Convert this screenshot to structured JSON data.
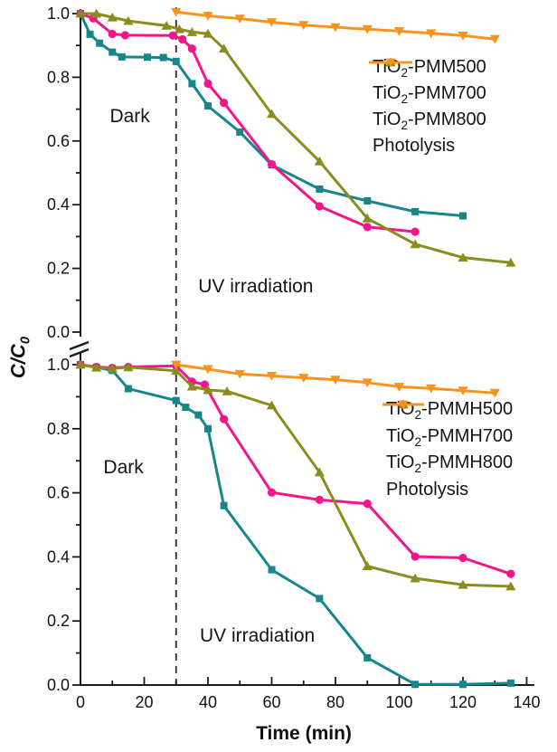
{
  "figure": {
    "x_axis_title": "Time (min)",
    "y_axis_title": {
      "main": "C/C",
      "sub": "0"
    },
    "x_tick_labels": [
      "0",
      "20",
      "40",
      "60",
      "80",
      "100",
      "120",
      "140"
    ]
  },
  "chart_data": {
    "type": "line",
    "xlabel": "Time (min)",
    "ylabel": "C/C0",
    "xlim": [
      0,
      142
    ],
    "legend_position": "right",
    "grid": false,
    "charts": [
      {
        "position": "top",
        "ylim": [
          0.0,
          1.0
        ],
        "y_tick_labels": [
          "1.0",
          "0.8",
          "0.6",
          "0.4",
          "0.2",
          "0.0"
        ],
        "dashed_line_at_min": 30,
        "annotations": [
          {
            "text": "Dark",
            "t": 15.5,
            "v": 0.675
          },
          {
            "text": "UV irradiation",
            "t": 55,
            "v": 0.142
          }
        ],
        "series": [
          {
            "label": {
              "pre": "TiO",
              "sub": "2",
              "post": "-PMM500"
            },
            "color": "#16868B",
            "marker": "square",
            "points": [
              [
                0,
                1.0
              ],
              [
                3,
                0.935
              ],
              [
                6,
                0.907
              ],
              [
                10,
                0.879
              ],
              [
                13,
                0.864
              ],
              [
                21,
                0.863
              ],
              [
                26,
                0.862
              ],
              [
                30,
                0.85
              ],
              [
                35,
                0.78
              ],
              [
                40,
                0.71
              ],
              [
                50,
                0.628
              ],
              [
                60,
                0.525
              ],
              [
                75,
                0.449
              ],
              [
                90,
                0.412
              ],
              [
                105,
                0.378
              ],
              [
                120,
                0.365
              ]
            ]
          },
          {
            "label": {
              "pre": "TiO",
              "sub": "2",
              "post": "-PMM700"
            },
            "color": "#F31589",
            "marker": "circle",
            "points": [
              [
                0,
                1.0
              ],
              [
                4,
                0.985
              ],
              [
                10,
                0.936
              ],
              [
                14,
                0.932
              ],
              [
                29,
                0.931
              ],
              [
                32,
                0.919
              ],
              [
                35,
                0.89
              ],
              [
                40,
                0.78
              ],
              [
                45,
                0.72
              ],
              [
                60,
                0.527
              ],
              [
                75,
                0.395
              ],
              [
                90,
                0.33
              ],
              [
                105,
                0.315
              ]
            ]
          },
          {
            "label": {
              "pre": "TiO",
              "sub": "2",
              "post": "-PMM800"
            },
            "color": "#8A8C1E",
            "marker": "triangle-up",
            "points": [
              [
                0,
                1.0
              ],
              [
                5,
                1.0
              ],
              [
                10,
                0.988
              ],
              [
                15,
                0.977
              ],
              [
                27,
                0.962
              ],
              [
                31,
                0.951
              ],
              [
                35,
                0.942
              ],
              [
                40,
                0.937
              ],
              [
                45,
                0.89
              ],
              [
                60,
                0.685
              ],
              [
                75,
                0.536
              ],
              [
                90,
                0.357
              ],
              [
                105,
                0.276
              ],
              [
                120,
                0.234
              ],
              [
                135,
                0.218
              ]
            ]
          },
          {
            "label": {
              "pre": "",
              "sub": "",
              "post": "Photolysis"
            },
            "color": "#FA921E",
            "marker": "triangle-down",
            "points": [
              [
                30,
                1.005
              ],
              [
                40,
                0.993
              ],
              [
                50,
                0.984
              ],
              [
                60,
                0.973
              ],
              [
                70,
                0.964
              ],
              [
                80,
                0.957
              ],
              [
                90,
                0.951
              ],
              [
                100,
                0.945
              ],
              [
                110,
                0.938
              ],
              [
                120,
                0.931
              ],
              [
                130,
                0.92
              ]
            ]
          }
        ]
      },
      {
        "position": "bottom",
        "ylim": [
          0.0,
          1.0
        ],
        "y_tick_labels": [
          "1.0",
          "0.8",
          "0.6",
          "0.4",
          "0.2",
          "0.0"
        ],
        "dashed_line_at_min": 30,
        "annotations": [
          {
            "text": "Dark",
            "t": 13.5,
            "v": 0.678
          },
          {
            "text": "UV irradiation",
            "t": 55.5,
            "v": 0.152
          }
        ],
        "series": [
          {
            "label": {
              "pre": "TiO",
              "sub": "2",
              "post": "-PMMH500"
            },
            "color": "#16868B",
            "marker": "square",
            "points": [
              [
                0,
                1.0
              ],
              [
                5,
                0.992
              ],
              [
                10,
                0.982
              ],
              [
                15,
                0.925
              ],
              [
                30,
                0.888
              ],
              [
                33,
                0.867
              ],
              [
                37,
                0.843
              ],
              [
                40,
                0.8
              ],
              [
                45,
                0.56
              ],
              [
                60,
                0.36
              ],
              [
                75,
                0.27
              ],
              [
                90,
                0.085
              ],
              [
                105,
                0.002
              ],
              [
                120,
                0.002
              ],
              [
                135,
                0.006
              ]
            ]
          },
          {
            "label": {
              "pre": "TiO",
              "sub": "2",
              "post": "-PMMH700"
            },
            "color": "#F31589",
            "marker": "circle",
            "points": [
              [
                0,
                1.0
              ],
              [
                5,
                0.993
              ],
              [
                10,
                0.99
              ],
              [
                15,
                0.993
              ],
              [
                30,
                0.996
              ],
              [
                35,
                0.947
              ],
              [
                39,
                0.938
              ],
              [
                45,
                0.83
              ],
              [
                60,
                0.601
              ],
              [
                75,
                0.578
              ],
              [
                90,
                0.566
              ],
              [
                105,
                0.401
              ],
              [
                120,
                0.397
              ],
              [
                135,
                0.347
              ]
            ]
          },
          {
            "label": {
              "pre": "TiO",
              "sub": "2",
              "post": "-PMMH800"
            },
            "color": "#8A8C1E",
            "marker": "triangle-up",
            "points": [
              [
                0,
                1.0
              ],
              [
                5,
                0.991
              ],
              [
                10,
                0.988
              ],
              [
                15,
                0.992
              ],
              [
                30,
                0.981
              ],
              [
                35,
                0.932
              ],
              [
                40,
                0.921
              ],
              [
                46,
                0.917
              ],
              [
                60,
                0.873
              ],
              [
                75,
                0.664
              ],
              [
                90,
                0.371
              ],
              [
                105,
                0.333
              ],
              [
                120,
                0.313
              ],
              [
                135,
                0.308
              ]
            ]
          },
          {
            "label": {
              "pre": "",
              "sub": "",
              "post": "Photolysis"
            },
            "color": "#FA921E",
            "marker": "triangle-down",
            "points": [
              [
                30,
                1.0
              ],
              [
                40,
                0.986
              ],
              [
                50,
                0.971
              ],
              [
                60,
                0.965
              ],
              [
                70,
                0.959
              ],
              [
                80,
                0.953
              ],
              [
                90,
                0.944
              ],
              [
                100,
                0.931
              ],
              [
                110,
                0.926
              ],
              [
                120,
                0.919
              ],
              [
                130,
                0.912
              ]
            ]
          }
        ]
      }
    ]
  }
}
